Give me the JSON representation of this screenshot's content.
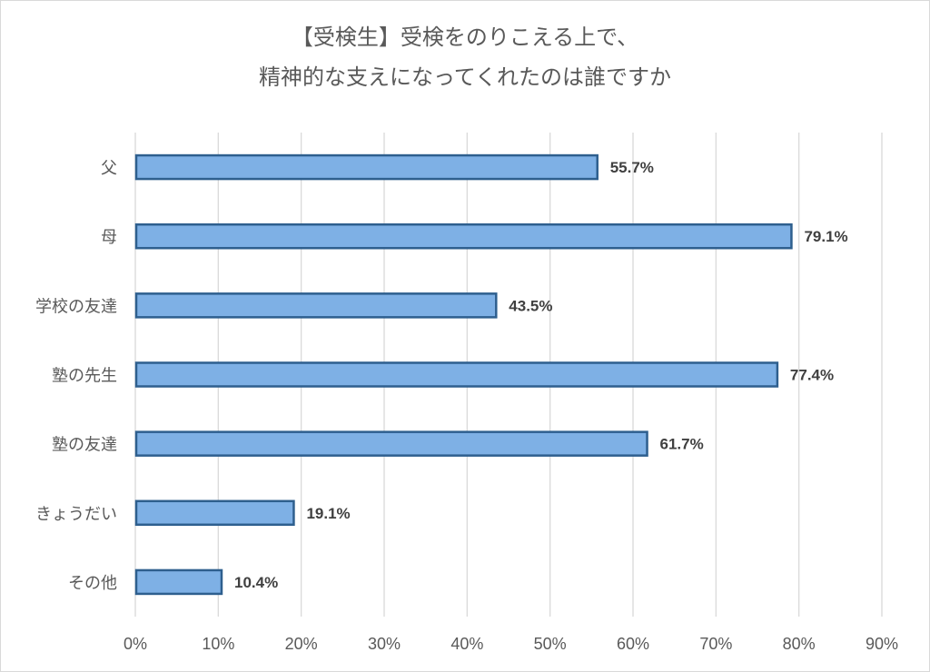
{
  "chart_data": {
    "type": "bar",
    "orientation": "horizontal",
    "title_lines": [
      "【受検生】受検をのりこえる上で、",
      "精神的な支えになってくれたのは誰ですか"
    ],
    "categories": [
      "父",
      "母",
      "学校の友達",
      "塾の先生",
      "塾の友達",
      "きょうだい",
      "その他"
    ],
    "values": [
      55.7,
      79.1,
      43.5,
      77.4,
      61.7,
      19.1,
      10.4
    ],
    "value_labels": [
      "55.7%",
      "79.1%",
      "43.5%",
      "77.4%",
      "61.7%",
      "19.1%",
      "10.4%"
    ],
    "xlim": [
      0,
      90
    ],
    "x_ticks": [
      0,
      10,
      20,
      30,
      40,
      50,
      60,
      70,
      80,
      90
    ],
    "x_tick_labels": [
      "0%",
      "10%",
      "20%",
      "30%",
      "40%",
      "50%",
      "60%",
      "70%",
      "80%",
      "90%"
    ],
    "grid": true,
    "legend": "none",
    "colors": {
      "bar_fill": "#7eb0e5",
      "bar_stroke": "#2e5f8e",
      "grid": "#d9d9d9",
      "text": "#595959",
      "value_text": "#404040"
    }
  }
}
